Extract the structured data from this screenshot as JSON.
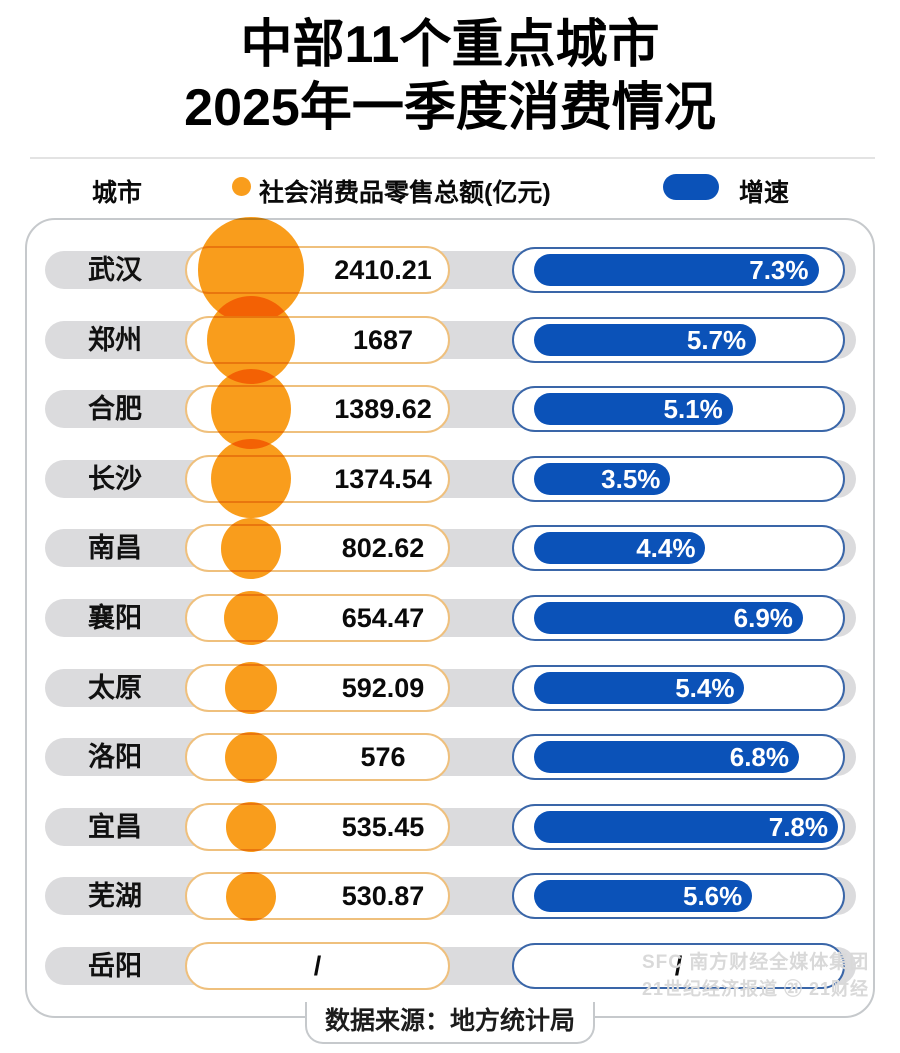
{
  "title": {
    "line1": "中部11个重点城市",
    "line2": "2025年一季度消费情况"
  },
  "legend": {
    "city_col": "城市",
    "bubble_label": "社会消费品零售总额(亿元)",
    "bar_label": "增速"
  },
  "footer": {
    "source": "数据来源：地方统计局"
  },
  "watermark": {
    "line1": "SFC 南方财经全媒体集团",
    "line2": "21世纪经济报道 ㉑ 21财经"
  },
  "colors": {
    "orange": "#F99D1C",
    "blue": "#0B52B8",
    "band": "#DBDBDD",
    "orange_border": "#EFC07D",
    "blue_border": "#3A66A8",
    "card_border": "#C6C9CC"
  },
  "rows": [
    {
      "city": "武汉",
      "value_label": "2410.21",
      "value": 2410.21,
      "pct_label": "7.3%",
      "pct": 7.3
    },
    {
      "city": "郑州",
      "value_label": "1687",
      "value": 1687,
      "pct_label": "5.7%",
      "pct": 5.7
    },
    {
      "city": "合肥",
      "value_label": "1389.62",
      "value": 1389.62,
      "pct_label": "5.1%",
      "pct": 5.1
    },
    {
      "city": "长沙",
      "value_label": "1374.54",
      "value": 1374.54,
      "pct_label": "3.5%",
      "pct": 3.5
    },
    {
      "city": "南昌",
      "value_label": "802.62",
      "value": 802.62,
      "pct_label": "4.4%",
      "pct": 4.4
    },
    {
      "city": "襄阳",
      "value_label": "654.47",
      "value": 654.47,
      "pct_label": "6.9%",
      "pct": 6.9
    },
    {
      "city": "太原",
      "value_label": "592.09",
      "value": 592.09,
      "pct_label": "5.4%",
      "pct": 5.4
    },
    {
      "city": "洛阳",
      "value_label": "576",
      "value": 576,
      "pct_label": "6.8%",
      "pct": 6.8
    },
    {
      "city": "宜昌",
      "value_label": "535.45",
      "value": 535.45,
      "pct_label": "7.8%",
      "pct": 7.8
    },
    {
      "city": "芜湖",
      "value_label": "530.87",
      "value": 530.87,
      "pct_label": "5.6%",
      "pct": 5.6
    },
    {
      "city": "岳阳",
      "value_label": "/",
      "value": null,
      "pct_label": "/",
      "pct": null
    }
  ],
  "chart_data": {
    "type": "bar",
    "title": "中部11个重点城市2025年一季度消费情况",
    "categories": [
      "武汉",
      "郑州",
      "合肥",
      "长沙",
      "南昌",
      "襄阳",
      "太原",
      "洛阳",
      "宜昌",
      "芜湖",
      "岳阳"
    ],
    "series": [
      {
        "name": "社会消费品零售总额(亿元)",
        "values": [
          2410.21,
          1687,
          1389.62,
          1374.54,
          802.62,
          654.47,
          592.09,
          576,
          535.45,
          530.87,
          null
        ]
      },
      {
        "name": "增速(%)",
        "values": [
          7.3,
          5.7,
          5.1,
          3.5,
          4.4,
          6.9,
          5.4,
          6.8,
          7.8,
          5.6,
          null
        ]
      }
    ],
    "xlabel": "城市",
    "ylabel": "",
    "legend_position": "top",
    "grid": false,
    "source": "数据来源：地方统计局",
    "growth_axis_range": [
      0,
      7.8
    ],
    "bubble_note": "气泡面积与零售总额成正比"
  }
}
